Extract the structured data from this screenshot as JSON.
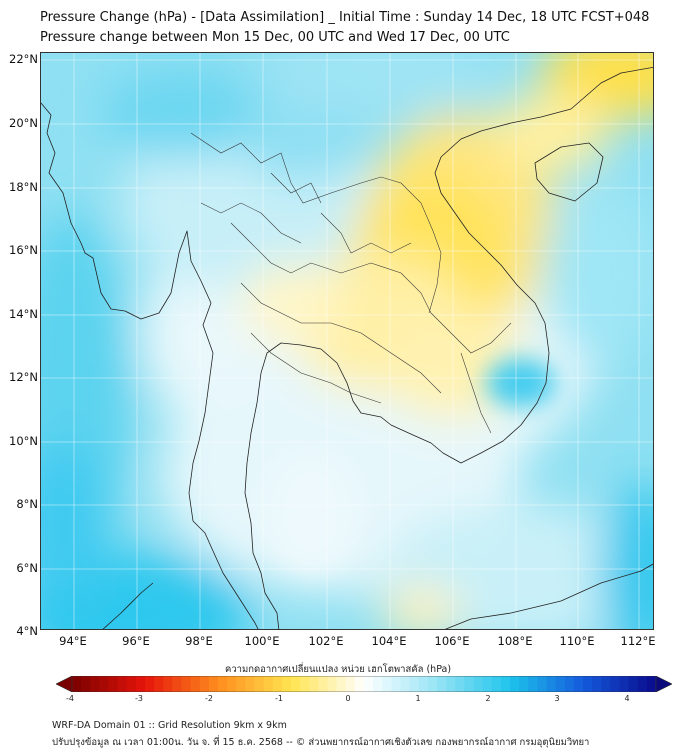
{
  "title": {
    "line1": "Pressure Change (hPa) - [Data Assimilation] _ Initial Time : Sunday 14 Dec, 18 UTC FCST+048",
    "line2": "Pressure change between Mon 15 Dec, 00 UTC and Wed 17 Dec, 00 UTC"
  },
  "map": {
    "lat_labels": [
      "22°N",
      "20°N",
      "18°N",
      "16°N",
      "14°N",
      "12°N",
      "10°N",
      "8°N",
      "6°N",
      "4°N"
    ],
    "lon_labels": [
      "94°E",
      "96°E",
      "98°E",
      "100°E",
      "102°E",
      "104°E",
      "106°E",
      "108°E",
      "110°E",
      "112°E"
    ],
    "field": "pressure change",
    "colors": {
      "neg_strong": "#7a0000",
      "neg_mid": "#ff3b1f",
      "neg_weak": "#ffe34a",
      "zero": "#ffffff",
      "pos_weak": "#9fe7f5",
      "pos_mid": "#1fc4ec",
      "pos_strong": "#0a0a9a"
    }
  },
  "colorbar": {
    "title": "ความกดอากาศเปลี่ยนแปลง หน่วย เฮกโตพาสคัล (hPa)",
    "ticks": [
      "-4",
      "-3",
      "-2",
      "-1",
      "0",
      "1",
      "2",
      "3",
      "4"
    ],
    "min": -4,
    "max": 4
  },
  "footer": {
    "line1": "WRF-DA Domain 01 :: Grid Resolution 9km x 9km",
    "line2": "ปรับปรุงข้อมูล ณ เวลา 01:00น. วัน จ. ที่ 15 ธ.ค. 2568 -- © ส่วนพยากรณ์อากาศเชิงตัวเลข กองพยากรณ์อากาศ กรมอุตุนิยมวิทยา"
  }
}
